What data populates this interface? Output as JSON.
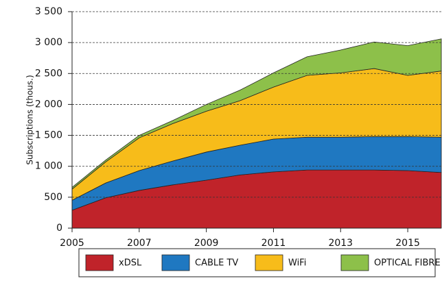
{
  "chart_data": {
    "type": "area",
    "stacked": true,
    "ylabel": "Subscriptions (thous.)",
    "x": [
      2005,
      2006,
      2007,
      2008,
      2009,
      2010,
      2011,
      2012,
      2013,
      2014,
      2015,
      2016
    ],
    "xlim": [
      2005,
      2016
    ],
    "xticks": [
      2005,
      2007,
      2009,
      2011,
      2013,
      2015
    ],
    "ylim": [
      0,
      3500
    ],
    "yticks": [
      0,
      500,
      {
        "value": 1000,
        "label": "1 000"
      },
      {
        "value": 1500,
        "label": "1 500"
      },
      {
        "value": 2000,
        "label": "2 000"
      },
      {
        "value": 2500,
        "label": "2 500"
      },
      {
        "value": 3000,
        "label": "3 000"
      },
      {
        "value": 3500,
        "label": "3 500"
      }
    ],
    "grid": true,
    "series": [
      {
        "name": "xDSL",
        "color": "#c0232a",
        "values": [
          290,
          490,
          610,
          700,
          775,
          860,
          910,
          940,
          940,
          940,
          930,
          900
        ]
      },
      {
        "name": "CABLE TV",
        "color": "#1f78c1",
        "values": [
          160,
          240,
          320,
          385,
          455,
          480,
          530,
          530,
          530,
          540,
          550,
          570
        ]
      },
      {
        "name": "WiFi",
        "color": "#f7bc1a",
        "values": [
          180,
          340,
          530,
          605,
          660,
          720,
          840,
          1000,
          1040,
          1100,
          990,
          1070
        ]
      },
      {
        "name": "OPTICAL FIBRE",
        "color": "#8dc04a",
        "values": [
          30,
          30,
          40,
          50,
          110,
          170,
          230,
          300,
          370,
          430,
          480,
          520
        ]
      }
    ]
  }
}
